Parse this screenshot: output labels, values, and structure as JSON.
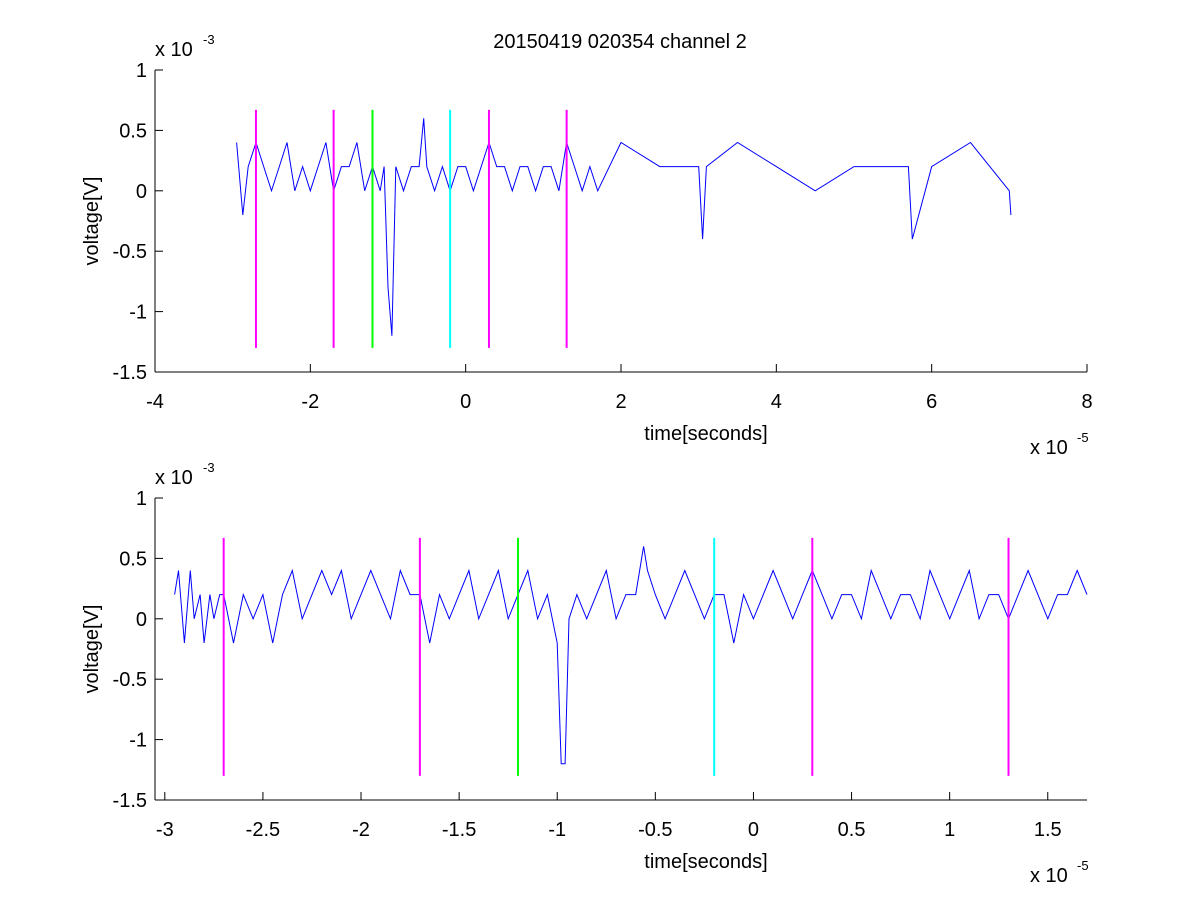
{
  "figure_title": "20150419 020354 channel 2",
  "chart_data": [
    {
      "type": "line",
      "title": "20150419 020354 channel 2",
      "xlabel": "time[seconds]",
      "ylabel": "voltage[V]",
      "x_exponent_label": "x 10",
      "x_exponent": "-5",
      "y_exponent_label": "x 10",
      "y_exponent": "-3",
      "xlim": [
        -4e-05,
        8e-05
      ],
      "ylim": [
        -0.0015,
        0.001
      ],
      "xticks": [
        -4e-05,
        -2e-05,
        0,
        2e-05,
        4e-05,
        6e-05,
        8e-05
      ],
      "xtick_labels": [
        "-4",
        "-2",
        "0",
        "2",
        "4",
        "6",
        "8"
      ],
      "yticks": [
        -0.0015,
        -0.001,
        -0.0005,
        0,
        0.0005,
        0.001
      ],
      "ytick_labels": [
        "-1.5",
        "-1",
        "-0.5",
        "0",
        "0.5",
        "1"
      ],
      "grid": false,
      "series": [
        {
          "color": "#0000ff",
          "x": [
            -2.95e-05,
            -2.87e-05,
            -2.8e-05,
            -2.7e-05,
            -2.6e-05,
            -2.5e-05,
            -2.4e-05,
            -2.3e-05,
            -2.2e-05,
            -2.1e-05,
            -2e-05,
            -1.9e-05,
            -1.8e-05,
            -1.7e-05,
            -1.6e-05,
            -1.5e-05,
            -1.4e-05,
            -1.3e-05,
            -1.2e-05,
            -1.1e-05,
            -1.05e-05,
            -1e-05,
            -9.5e-06,
            -9e-06,
            -8e-06,
            -7e-06,
            -6e-06,
            -5.4e-06,
            -5e-06,
            -4e-06,
            -3e-06,
            -2e-06,
            -1e-06,
            0,
            1e-06,
            2e-06,
            3e-06,
            4e-06,
            5e-06,
            6e-06,
            7e-06,
            8e-06,
            9e-06,
            1e-05,
            1.1e-05,
            1.2e-05,
            1.3e-05,
            1.4e-05,
            1.5e-05,
            1.6e-05,
            1.7e-05,
            2e-05,
            2.5e-05,
            3e-05,
            3.05e-05,
            3.1e-05,
            3.5e-05,
            4e-05,
            4.5e-05,
            5e-05,
            5.5e-05,
            5.7e-05,
            5.75e-05,
            6e-05,
            6.5e-05,
            7e-05,
            7.02e-05
          ],
          "y": [
            0.0004,
            -0.0002,
            0.0002,
            0.0004,
            0.0002,
            0,
            0.0002,
            0.0004,
            0,
            0.0002,
            0,
            0.0002,
            0.0004,
            0,
            0.0002,
            0.0002,
            0.0004,
            0,
            0.0002,
            0,
            0.0002,
            -0.0008,
            -0.0012,
            0.0002,
            0,
            0.0002,
            0.0002,
            0.0006,
            0.0002,
            0,
            0.0002,
            0,
            0.0002,
            0.0002,
            0,
            0.0002,
            0.0004,
            0.0002,
            0.0002,
            0,
            0.0002,
            0.0002,
            0,
            0.0002,
            0.0002,
            0,
            0.0004,
            0.0002,
            0,
            0.0002,
            0,
            0.0004,
            0.0002,
            0.0002,
            -0.0004,
            0.0002,
            0.0004,
            0.0002,
            0,
            0.0002,
            0.0002,
            0.0002,
            -0.0004,
            0.0002,
            0.0004,
            0,
            -0.0002
          ]
        }
      ],
      "markers": [
        {
          "x": -2.7e-05,
          "color": "#ff00ff"
        },
        {
          "x": -1.7e-05,
          "color": "#ff00ff"
        },
        {
          "x": -1.2e-05,
          "color": "#00ff00"
        },
        {
          "x": -2e-06,
          "color": "#00ffff"
        },
        {
          "x": 3e-06,
          "color": "#ff00ff"
        },
        {
          "x": 1.3e-05,
          "color": "#ff00ff"
        }
      ],
      "marker_ylim": [
        -0.0013,
        0.00067
      ]
    },
    {
      "type": "line",
      "title": "",
      "xlabel": "time[seconds]",
      "ylabel": "voltage[V]",
      "x_exponent_label": "x 10",
      "x_exponent": "-5",
      "y_exponent_label": "x 10",
      "y_exponent": "-3",
      "xlim": [
        -3.05e-05,
        1.7e-05
      ],
      "ylim": [
        -0.0015,
        0.001
      ],
      "xticks": [
        -3e-05,
        -2.5e-05,
        -2e-05,
        -1.5e-05,
        -1e-05,
        -5e-06,
        0,
        5e-06,
        1e-05,
        1.5e-05
      ],
      "xtick_labels": [
        "-3",
        "-2.5",
        "-2",
        "-1.5",
        "-1",
        "-0.5",
        "0",
        "0.5",
        "1",
        "1.5"
      ],
      "yticks": [
        -0.0015,
        -0.001,
        -0.0005,
        0,
        0.0005,
        0.001
      ],
      "ytick_labels": [
        "-1.5",
        "-1",
        "-0.5",
        "0",
        "0.5",
        "1"
      ],
      "grid": false,
      "series": [
        {
          "color": "#0000ff",
          "x": [
            -2.95e-05,
            -2.93e-05,
            -2.9e-05,
            -2.87e-05,
            -2.85e-05,
            -2.82e-05,
            -2.8e-05,
            -2.77e-05,
            -2.75e-05,
            -2.72e-05,
            -2.7e-05,
            -2.65e-05,
            -2.6e-05,
            -2.55e-05,
            -2.5e-05,
            -2.45e-05,
            -2.4e-05,
            -2.35e-05,
            -2.3e-05,
            -2.25e-05,
            -2.2e-05,
            -2.15e-05,
            -2.1e-05,
            -2.05e-05,
            -2e-05,
            -1.95e-05,
            -1.9e-05,
            -1.85e-05,
            -1.8e-05,
            -1.75e-05,
            -1.7e-05,
            -1.65e-05,
            -1.6e-05,
            -1.55e-05,
            -1.5e-05,
            -1.45e-05,
            -1.4e-05,
            -1.35e-05,
            -1.3e-05,
            -1.25e-05,
            -1.2e-05,
            -1.15e-05,
            -1.1e-05,
            -1.05e-05,
            -1e-05,
            -9.8e-06,
            -9.6e-06,
            -9.4e-06,
            -9e-06,
            -8.5e-06,
            -8e-06,
            -7.5e-06,
            -7e-06,
            -6.5e-06,
            -6e-06,
            -5.6e-06,
            -5.4e-06,
            -5e-06,
            -4.5e-06,
            -4e-06,
            -3.5e-06,
            -3e-06,
            -2.5e-06,
            -2e-06,
            -1.5e-06,
            -1e-06,
            -5e-07,
            0,
            5e-07,
            1e-06,
            1.5e-06,
            2e-06,
            2.5e-06,
            3e-06,
            3.5e-06,
            4e-06,
            4.5e-06,
            5e-06,
            5.5e-06,
            6e-06,
            6.5e-06,
            7e-06,
            7.5e-06,
            8e-06,
            8.5e-06,
            9e-06,
            9.5e-06,
            1e-05,
            1.05e-05,
            1.1e-05,
            1.15e-05,
            1.2e-05,
            1.25e-05,
            1.3e-05,
            1.35e-05,
            1.4e-05,
            1.45e-05,
            1.5e-05,
            1.55e-05,
            1.6e-05,
            1.65e-05,
            1.7e-05
          ],
          "y": [
            0.0002,
            0.0004,
            -0.0002,
            0.0004,
            0,
            0.0002,
            -0.0002,
            0.0002,
            0,
            0.0002,
            0.0002,
            -0.0002,
            0.0002,
            0,
            0.0002,
            -0.0002,
            0.0002,
            0.0004,
            0,
            0.0002,
            0.0004,
            0.0002,
            0.0004,
            0,
            0.0002,
            0.0004,
            0.0002,
            0,
            0.0004,
            0.0002,
            0.0002,
            -0.0002,
            0.0002,
            0,
            0.0002,
            0.0004,
            0,
            0.0002,
            0.0004,
            0,
            0.0002,
            0.0004,
            0,
            0.0002,
            -0.0002,
            -0.0012,
            -0.0012,
            0,
            0.0002,
            0,
            0.0002,
            0.0004,
            0,
            0.0002,
            0.0002,
            0.0006,
            0.0004,
            0.0002,
            0,
            0.0002,
            0.0004,
            0.0002,
            0,
            0.0002,
            0.0002,
            -0.0002,
            0.0002,
            0,
            0.0002,
            0.0004,
            0.0002,
            0,
            0.0002,
            0.0004,
            0.0002,
            0,
            0.0002,
            0.0002,
            0,
            0.0004,
            0.0002,
            0,
            0.0002,
            0.0002,
            0,
            0.0004,
            0.0002,
            0,
            0.0002,
            0.0004,
            0,
            0.0002,
            0.0002,
            0,
            0.0002,
            0.0004,
            0.0002,
            0,
            0.0002,
            0.0002,
            0.0004,
            0.0002
          ]
        }
      ],
      "markers": [
        {
          "x": -2.7e-05,
          "color": "#ff00ff"
        },
        {
          "x": -1.7e-05,
          "color": "#ff00ff"
        },
        {
          "x": -1.2e-05,
          "color": "#00ff00"
        },
        {
          "x": -2e-06,
          "color": "#00ffff"
        },
        {
          "x": 3e-06,
          "color": "#ff00ff"
        },
        {
          "x": 1.3e-05,
          "color": "#ff00ff"
        }
      ],
      "marker_ylim": [
        -0.0013,
        0.00067
      ]
    }
  ]
}
